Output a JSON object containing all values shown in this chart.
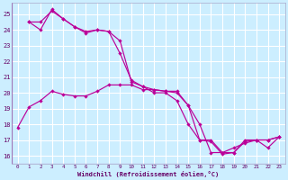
{
  "xlabel": "Windchill (Refroidissement éolien,°C)",
  "xlim": [
    -0.5,
    23.5
  ],
  "ylim": [
    15.5,
    25.7
  ],
  "yticks": [
    16,
    17,
    18,
    19,
    20,
    21,
    22,
    23,
    24,
    25
  ],
  "xticks": [
    0,
    1,
    2,
    3,
    4,
    5,
    6,
    7,
    8,
    9,
    10,
    11,
    12,
    13,
    14,
    15,
    16,
    17,
    18,
    19,
    20,
    21,
    22,
    23
  ],
  "background_color": "#cceeff",
  "grid_color": "#ffffff",
  "line_color": "#bb0099",
  "line1_x": [
    0,
    1,
    2,
    3,
    4,
    5,
    6,
    7,
    8,
    9,
    10,
    11,
    12,
    13,
    14,
    15,
    16,
    17,
    18,
    19,
    20,
    21,
    22,
    23
  ],
  "line1_y": [
    17.8,
    19.1,
    19.5,
    20.1,
    19.9,
    19.8,
    19.8,
    20.1,
    20.5,
    20.5,
    20.5,
    20.2,
    20.2,
    20.1,
    20.1,
    19.2,
    18.0,
    16.2,
    16.2,
    16.5,
    16.8,
    17.0,
    16.5,
    17.2
  ],
  "line2_x": [
    1,
    2,
    3,
    4,
    5,
    6,
    7,
    8,
    9,
    10,
    11,
    12,
    13,
    14,
    15,
    16,
    17,
    18,
    19,
    20,
    21,
    22,
    23
  ],
  "line2_y": [
    24.5,
    24.5,
    25.2,
    24.7,
    24.2,
    23.9,
    24.0,
    23.9,
    23.3,
    20.7,
    20.4,
    20.2,
    20.1,
    20.0,
    19.2,
    17.0,
    16.9,
    16.1,
    16.2,
    16.9,
    17.0,
    17.0,
    17.2
  ],
  "line3_x": [
    1,
    2,
    3,
    4,
    5,
    6,
    7,
    8,
    9,
    10,
    11,
    12,
    13,
    14,
    15,
    16,
    17,
    18,
    19,
    20,
    21,
    22,
    23
  ],
  "line3_y": [
    24.5,
    24.0,
    25.3,
    24.7,
    24.2,
    23.8,
    24.0,
    23.9,
    22.5,
    20.8,
    20.4,
    20.0,
    20.0,
    19.5,
    18.0,
    17.0,
    17.0,
    16.2,
    16.2,
    17.0,
    17.0,
    17.0,
    17.2
  ]
}
